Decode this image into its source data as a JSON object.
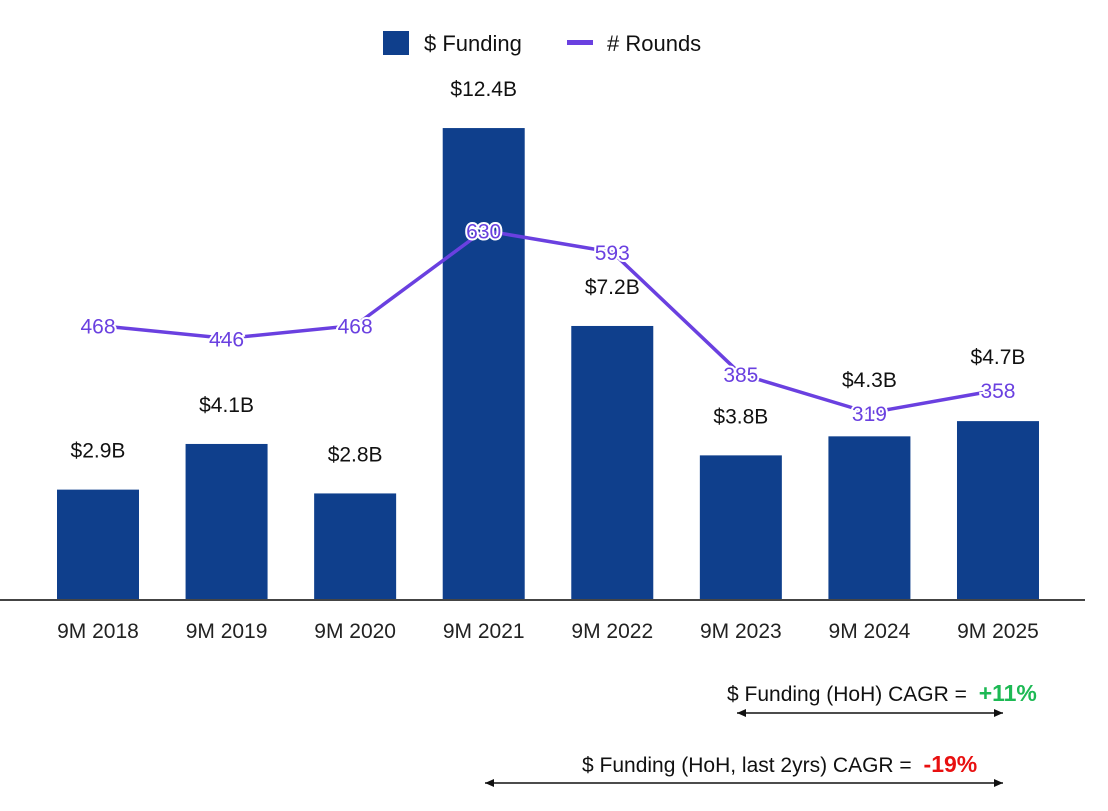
{
  "chart_data": {
    "type": "bar+line",
    "categories": [
      "9M 2018",
      "9M 2019",
      "9M 2020",
      "9M 2021",
      "9M 2022",
      "9M 2023",
      "9M 2024",
      "9M 2025"
    ],
    "series": [
      {
        "name": "$ Funding",
        "type": "bar",
        "values": [
          2.9,
          4.1,
          2.8,
          12.4,
          7.2,
          3.8,
          4.3,
          4.7
        ],
        "labels": [
          "$2.9B",
          "$4.1B",
          "$2.8B",
          "$12.4B",
          "$7.2B",
          "$3.8B",
          "$4.3B",
          "$4.7B"
        ],
        "color": "#0f3f8c"
      },
      {
        "name": "# Rounds",
        "type": "line",
        "values": [
          468,
          446,
          468,
          630,
          593,
          385,
          319,
          358
        ],
        "color": "#6a40e0"
      }
    ],
    "legend_position": "top",
    "grid": false
  },
  "annotations": [
    {
      "text": "$ Funding (HoH) CAGR =",
      "value": "+11%",
      "color": "#1db954"
    },
    {
      "text": "$ Funding (HoH, last 2yrs) CAGR =",
      "value": "-19%",
      "color": "#e81010"
    }
  ]
}
